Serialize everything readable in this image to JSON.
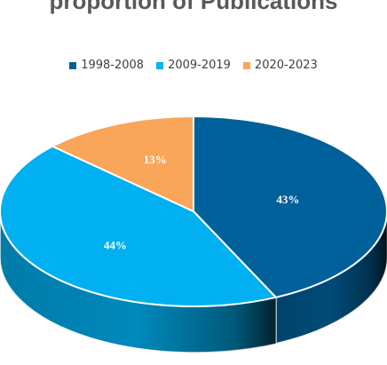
{
  "chart_data": {
    "type": "pie",
    "title": "proportion of Publications",
    "legend_position": "top",
    "slices": [
      {
        "name": "1998-2008",
        "value": 43,
        "label": "43%",
        "color": "#00609A"
      },
      {
        "name": "2009-2019",
        "value": 44,
        "label": "44%",
        "color": "#00B0F0"
      },
      {
        "name": "2020-2023",
        "value": 13,
        "label": "13%",
        "color": "#F9A65A"
      }
    ]
  }
}
